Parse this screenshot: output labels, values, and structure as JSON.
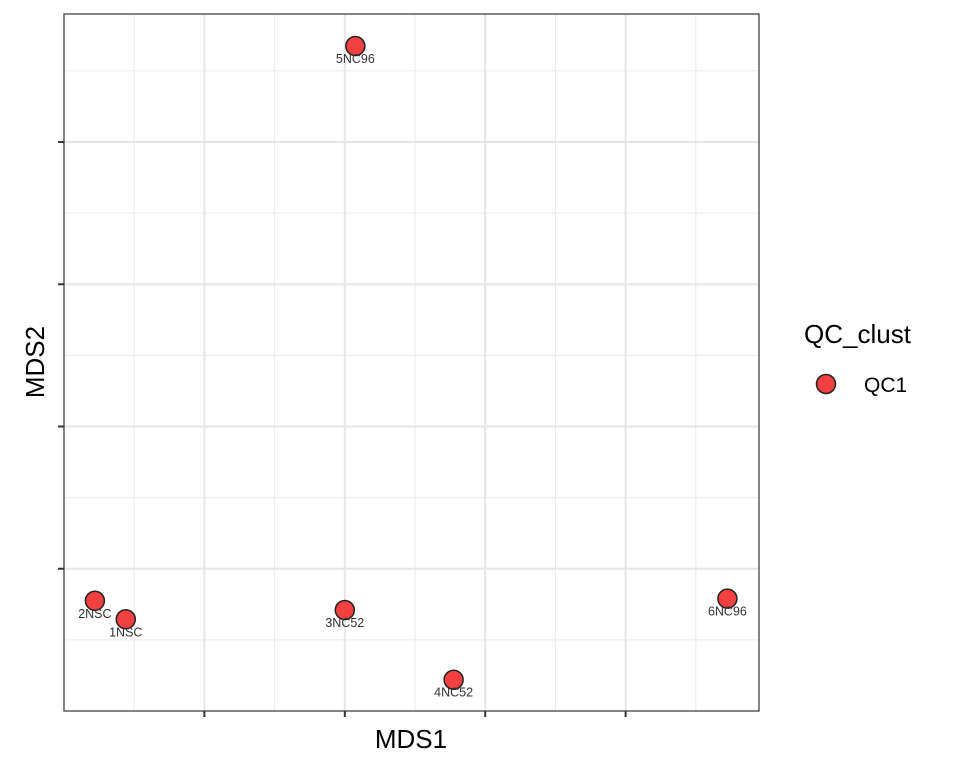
{
  "chart_data": {
    "type": "scatter",
    "xlabel": "MDS1",
    "ylabel": "MDS2",
    "xlim": [
      0,
      9.9
    ],
    "ylim": [
      0,
      9.8
    ],
    "x_ticks": [
      2,
      4,
      6,
      8
    ],
    "y_ticks": [
      2,
      4,
      6,
      8
    ],
    "grid": true,
    "legend": {
      "title": "QC_clust",
      "placement": "right",
      "entries": [
        {
          "label": "QC1",
          "color": "#F04040"
        }
      ]
    },
    "series": [
      {
        "name": "QC1",
        "color": "#F04040",
        "points": [
          {
            "label": "2NSC",
            "x": 0.44,
            "y": 1.55
          },
          {
            "label": "1NSC",
            "x": 0.88,
            "y": 1.29
          },
          {
            "label": "3NC52",
            "x": 4.0,
            "y": 1.42
          },
          {
            "label": "4NC52",
            "x": 5.55,
            "y": 0.44
          },
          {
            "label": "5NC96",
            "x": 4.15,
            "y": 9.35
          },
          {
            "label": "6NC96",
            "x": 9.45,
            "y": 1.58
          }
        ]
      }
    ]
  }
}
